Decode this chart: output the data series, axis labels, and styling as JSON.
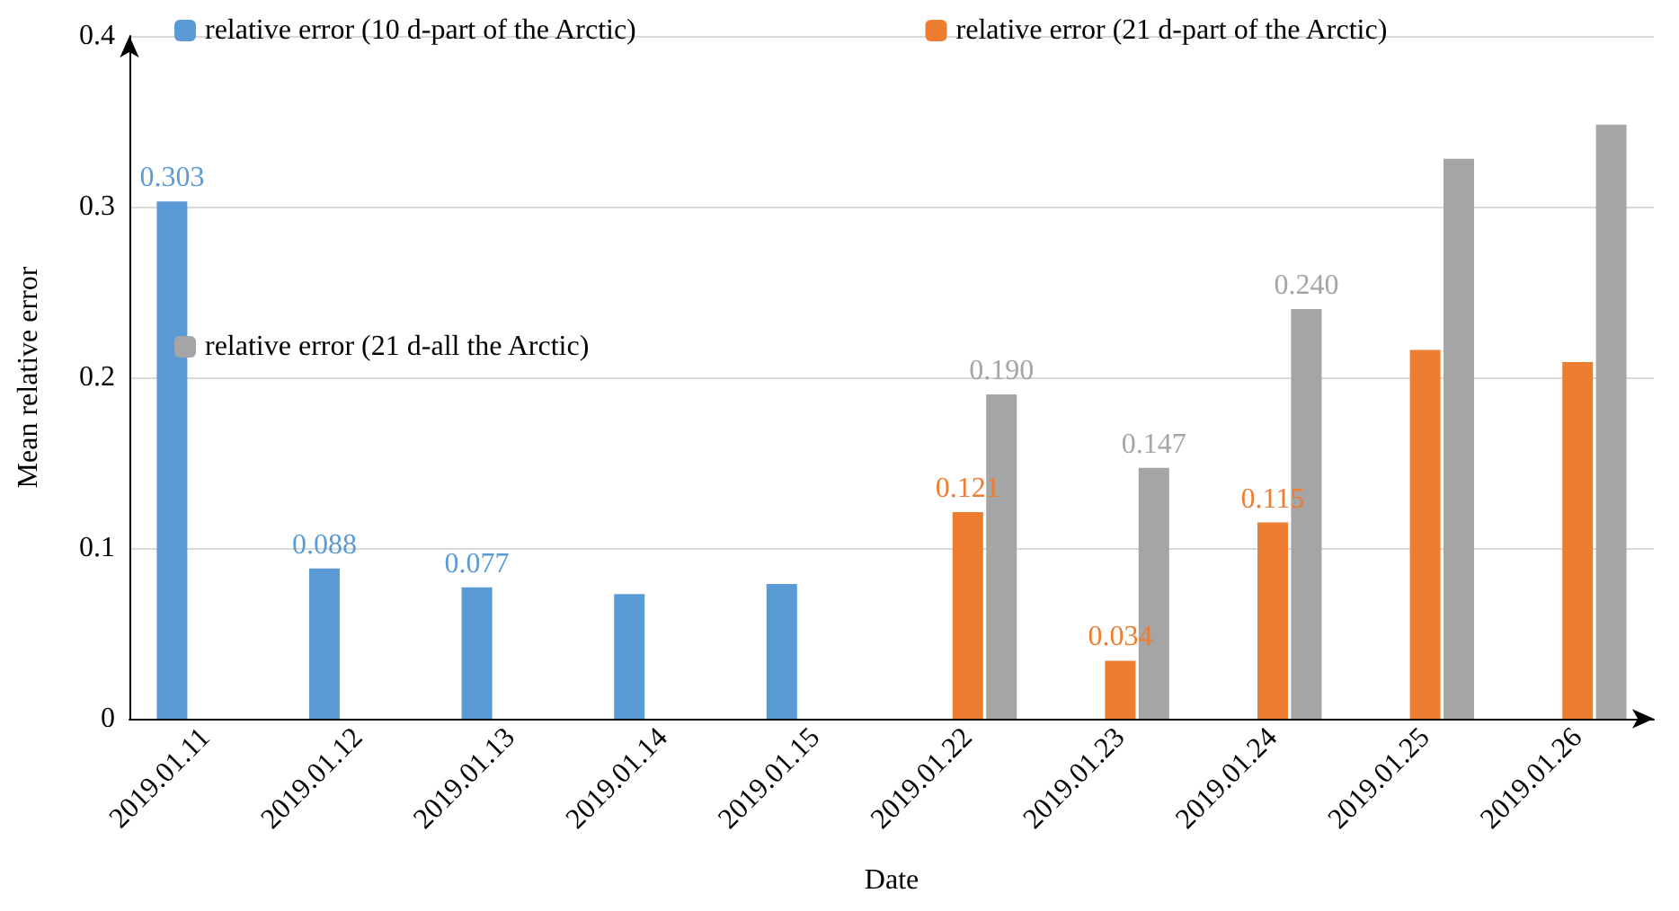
{
  "chart_data": {
    "type": "bar",
    "xlabel": "Date",
    "ylabel": "Mean relative error",
    "categories": [
      "2019.01.11",
      "2019.01.12",
      "2019.01.13",
      "2019.01.14",
      "2019.01.15",
      "2019.01.22",
      "2019.01.23",
      "2019.01.24",
      "2019.01.25",
      "2019.01.26"
    ],
    "series": [
      {
        "name": "relative error (10 d-part of the Arctic)",
        "color": "#5b9bd5",
        "values": [
          0.303,
          0.088,
          0.077,
          0.073,
          0.079,
          null,
          null,
          null,
          null,
          null
        ],
        "value_labels": [
          "0.303",
          "0.088",
          "0.077",
          null,
          null,
          null,
          null,
          null,
          null,
          null
        ]
      },
      {
        "name": "relative error (21 d-part of the Arctic)",
        "color": "#ed7d31",
        "values": [
          null,
          null,
          null,
          null,
          null,
          0.121,
          0.034,
          0.115,
          0.216,
          0.209
        ],
        "value_labels": [
          null,
          null,
          null,
          null,
          null,
          "0.121",
          "0.034",
          "0.115",
          null,
          null
        ]
      },
      {
        "name": "relative error (21 d-all the Arctic)",
        "color": "#a5a5a5",
        "values": [
          null,
          null,
          null,
          null,
          null,
          0.19,
          0.147,
          0.24,
          0.328,
          0.348
        ],
        "value_labels": [
          null,
          null,
          null,
          null,
          null,
          "0.190",
          "0.147",
          "0.240",
          null,
          null
        ]
      }
    ],
    "ylim": [
      0,
      0.4
    ],
    "yticks": [
      0,
      0.1,
      0.2,
      0.3,
      0.4
    ],
    "grid": "y",
    "legend": "top"
  }
}
